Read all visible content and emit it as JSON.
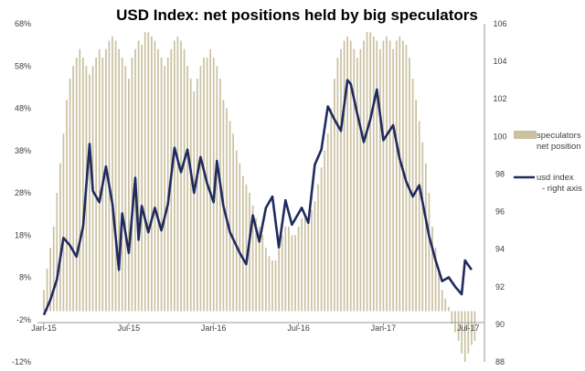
{
  "chart_data": {
    "type": "bar",
    "title": "USD Index: net positions held by big speculators",
    "x_tick_labels": [
      "Jan-15",
      "Jul-15",
      "Jan-16",
      "Jul-16",
      "Jan-17",
      "Jul-17"
    ],
    "left_axis": {
      "tick_labels": [
        "68%",
        "58%",
        "48%",
        "38%",
        "28%",
        "18%",
        "8%",
        "-2%",
        "-12%"
      ],
      "ylim": [
        -12,
        68
      ]
    },
    "right_axis": {
      "tick_labels": [
        "106",
        "104",
        "102",
        "100",
        "98",
        "96",
        "94",
        "92",
        "90",
        "88"
      ],
      "ylim": [
        88,
        106
      ]
    },
    "series": [
      {
        "name": "speculators net position",
        "legend_lines": [
          "speculators",
          "net position"
        ],
        "kind": "bar",
        "axis": "left",
        "color": "#c9c1a0",
        "values": [
          5,
          10,
          15,
          20,
          28,
          35,
          42,
          50,
          55,
          58,
          60,
          62,
          60,
          58,
          56,
          58,
          60,
          62,
          60,
          62,
          64,
          65,
          64,
          62,
          60,
          58,
          55,
          60,
          62,
          64,
          63,
          66,
          66,
          65,
          64,
          62,
          60,
          58,
          60,
          62,
          64,
          65,
          64,
          62,
          58,
          55,
          52,
          55,
          58,
          60,
          60,
          62,
          60,
          58,
          55,
          50,
          48,
          45,
          42,
          38,
          35,
          32,
          30,
          28,
          25,
          22,
          20,
          18,
          15,
          13,
          12,
          12,
          15,
          18,
          20,
          20,
          18,
          18,
          20,
          22,
          22,
          22,
          24,
          26,
          30,
          34,
          38,
          42,
          48,
          55,
          60,
          62,
          64,
          65,
          64,
          62,
          60,
          62,
          64,
          66,
          66,
          65,
          64,
          62,
          64,
          65,
          64,
          62,
          64,
          65,
          64,
          63,
          60,
          55,
          50,
          45,
          40,
          35,
          28,
          20,
          15,
          10,
          5,
          3,
          1,
          -3,
          -5,
          -7,
          -10,
          -12,
          -10,
          -8,
          -7
        ]
      },
      {
        "name": "usd index",
        "legend_lines": [
          "usd index",
          "- right axis"
        ],
        "kind": "line",
        "axis": "right",
        "color": "#1f2a5e",
        "x": [
          0,
          2,
          4,
          6,
          8,
          10,
          12,
          14,
          15,
          17,
          19,
          21,
          23,
          24,
          26,
          28,
          29,
          30,
          32,
          34,
          36,
          38,
          40,
          42,
          44,
          46,
          48,
          50,
          52,
          53,
          55,
          57,
          60,
          62,
          64,
          66,
          68,
          70,
          72,
          74,
          76,
          79,
          81,
          83,
          85,
          87,
          89,
          91,
          93,
          94,
          96,
          98,
          100,
          102,
          104,
          107,
          109,
          111,
          113,
          115,
          117,
          118,
          120,
          122,
          124,
          126,
          128,
          129,
          131
        ],
        "values": [
          90.5,
          91.3,
          92.4,
          94.6,
          94.2,
          93.6,
          95.2,
          99.6,
          97.1,
          96.5,
          98.4,
          96.4,
          92.9,
          95.9,
          93.8,
          97.8,
          94.5,
          96.3,
          94.9,
          96.2,
          95.0,
          96.4,
          99.4,
          98.1,
          99.3,
          97.0,
          98.9,
          97.5,
          96.5,
          98.7,
          96.3,
          94.9,
          93.8,
          93.2,
          95.8,
          94.4,
          96.2,
          96.8,
          94.1,
          96.6,
          95.3,
          96.2,
          95.4,
          98.5,
          99.3,
          101.6,
          100.9,
          100.3,
          103.0,
          102.8,
          101.2,
          99.7,
          100.9,
          102.5,
          99.8,
          100.6,
          98.8,
          97.6,
          96.8,
          97.4,
          95.6,
          94.7,
          93.4,
          92.3,
          92.5,
          92.0,
          91.6,
          93.4,
          92.9
        ]
      }
    ],
    "legend_position": "right",
    "grid": false
  }
}
